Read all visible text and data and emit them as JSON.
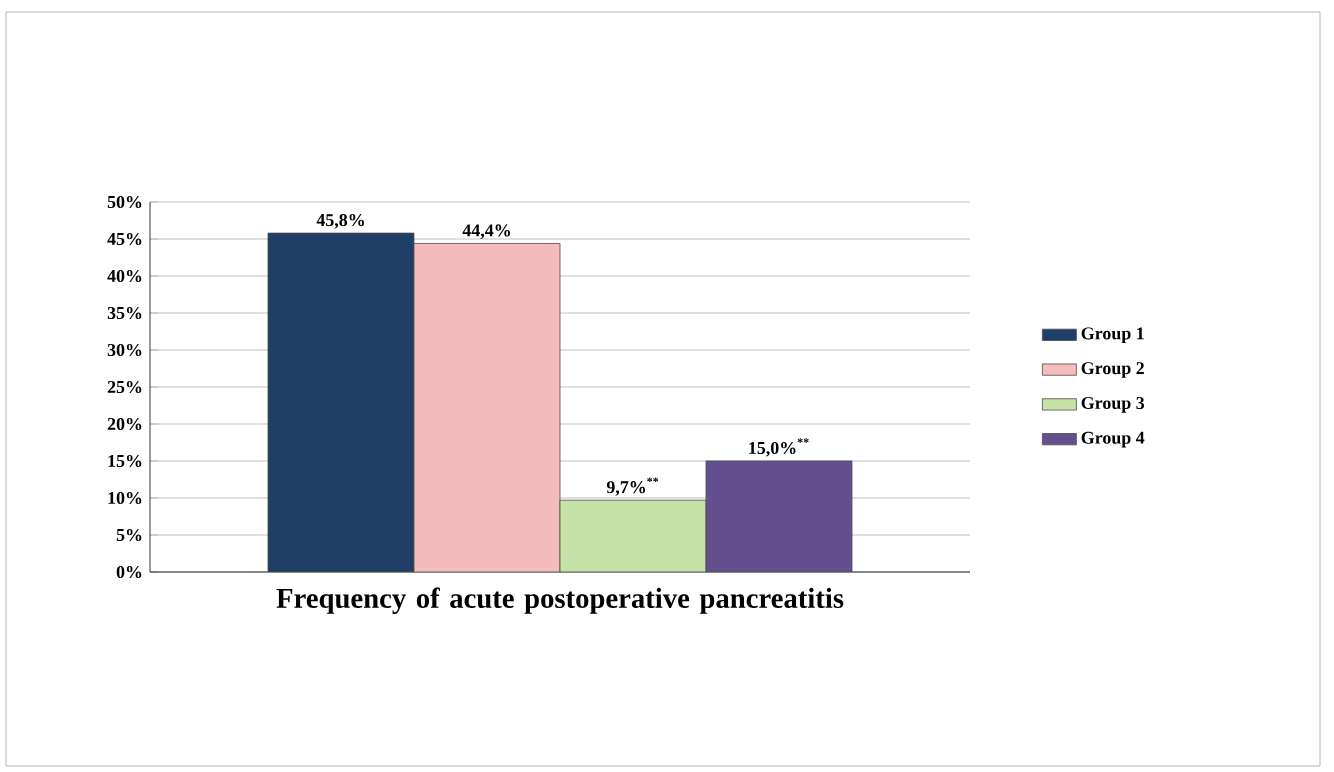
{
  "chart_data": {
    "type": "bar",
    "categories": [
      "Frequency of acute postoperative pancreatitis"
    ],
    "series": [
      {
        "name": "Group 1",
        "color": "#1f3f66",
        "values": [
          45.8
        ],
        "value_labels": [
          "45,8%"
        ]
      },
      {
        "name": "Group 2",
        "color": "#f4bcbb",
        "values": [
          44.4
        ],
        "value_labels": [
          "44,4%"
        ]
      },
      {
        "name": "Group 3",
        "color": "#c6e2a6",
        "values": [
          9.7
        ],
        "value_labels": [
          "9,7%$^{**}$"
        ]
      },
      {
        "name": "Group 4",
        "color": "#64508f",
        "values": [
          15.0
        ],
        "value_labels": [
          "15,0%$^{**}$"
        ]
      }
    ],
    "ylim": [
      0,
      50
    ],
    "yticks": [
      {
        "value": 0,
        "label": "0%"
      },
      {
        "value": 5,
        "label": "5%"
      },
      {
        "value": 10,
        "label": "10%"
      },
      {
        "value": 15,
        "label": "15%"
      },
      {
        "value": 20,
        "label": "20%"
      },
      {
        "value": 25,
        "label": "25%"
      },
      {
        "value": 30,
        "label": "30%"
      },
      {
        "value": 35,
        "label": "35%"
      },
      {
        "value": 40,
        "label": "40%"
      },
      {
        "value": 45,
        "label": "45%"
      },
      {
        "value": 50,
        "label": "50%"
      }
    ],
    "grid": "y",
    "legend": "right"
  }
}
